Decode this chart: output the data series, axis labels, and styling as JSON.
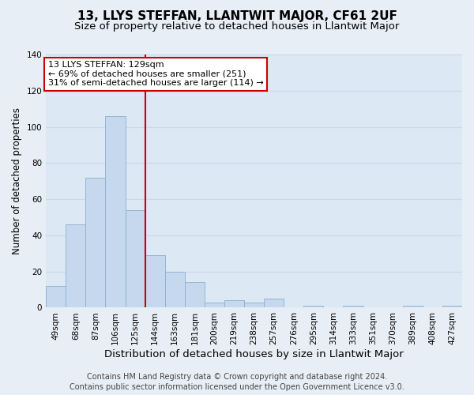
{
  "title": "13, LLYS STEFFAN, LLANTWIT MAJOR, CF61 2UF",
  "subtitle": "Size of property relative to detached houses in Llantwit Major",
  "xlabel": "Distribution of detached houses by size in Llantwit Major",
  "ylabel": "Number of detached properties",
  "bar_labels": [
    "49sqm",
    "68sqm",
    "87sqm",
    "106sqm",
    "125sqm",
    "144sqm",
    "163sqm",
    "181sqm",
    "200sqm",
    "219sqm",
    "238sqm",
    "257sqm",
    "276sqm",
    "295sqm",
    "314sqm",
    "333sqm",
    "351sqm",
    "370sqm",
    "389sqm",
    "408sqm",
    "427sqm"
  ],
  "bar_values": [
    12,
    46,
    72,
    106,
    54,
    29,
    20,
    14,
    3,
    4,
    3,
    5,
    0,
    1,
    0,
    1,
    0,
    0,
    1,
    0,
    1
  ],
  "bar_color": "#c5d8ed",
  "bar_edge_color": "#8ab0d0",
  "vline_color": "#cc0000",
  "vline_x": 4.5,
  "ylim": [
    0,
    140
  ],
  "yticks": [
    0,
    20,
    40,
    60,
    80,
    100,
    120,
    140
  ],
  "annotation_text_line1": "13 LLYS STEFFAN: 129sqm",
  "annotation_text_line2": "← 69% of detached houses are smaller (251)",
  "annotation_text_line3": "31% of semi-detached houses are larger (114) →",
  "footer_line1": "Contains HM Land Registry data © Crown copyright and database right 2024.",
  "footer_line2": "Contains public sector information licensed under the Open Government Licence v3.0.",
  "background_color": "#e8eef5",
  "plot_bg_color": "#dce8f4",
  "grid_color": "#c8d8ea",
  "title_fontsize": 11,
  "subtitle_fontsize": 9.5,
  "xlabel_fontsize": 9.5,
  "ylabel_fontsize": 8.5,
  "tick_fontsize": 7.5,
  "annot_fontsize": 8,
  "footer_fontsize": 7
}
